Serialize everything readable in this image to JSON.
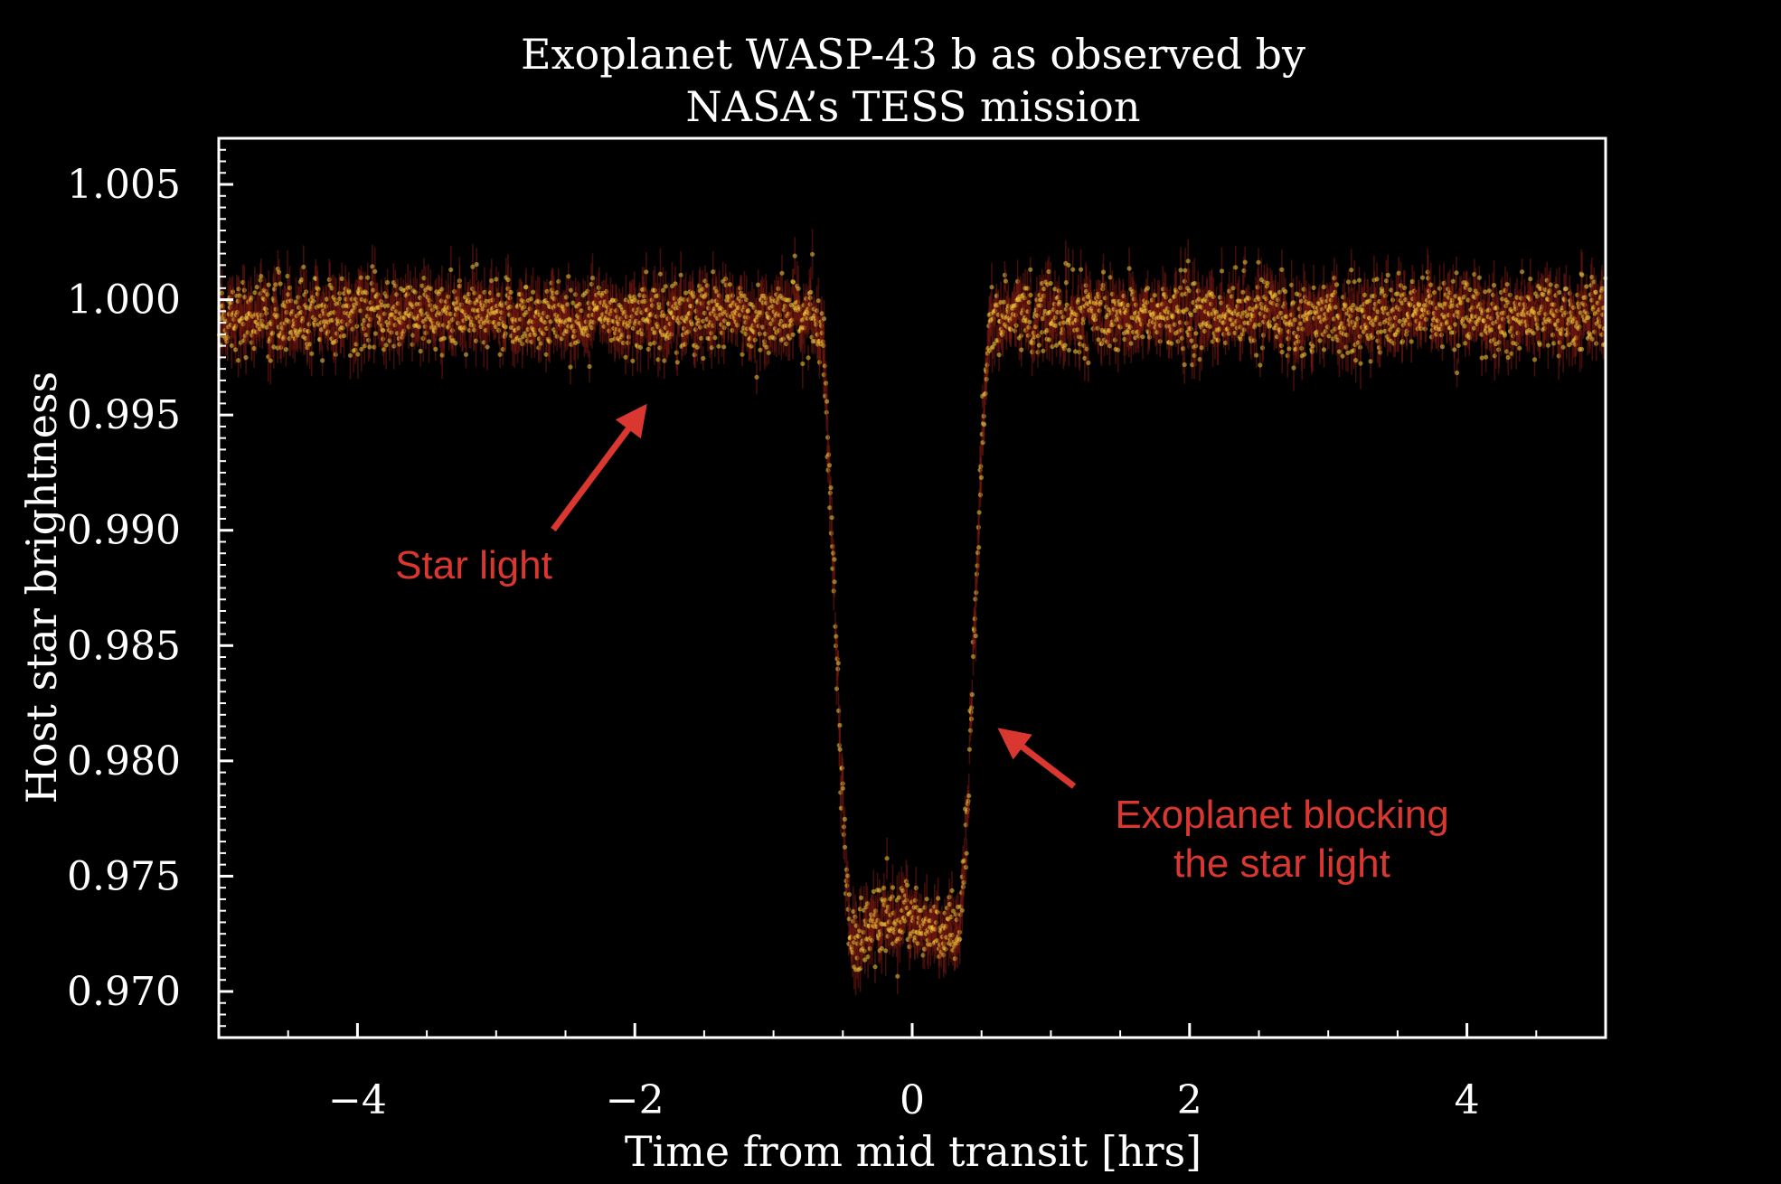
{
  "chart_data": {
    "type": "scatter",
    "title_lines": [
      "Exoplanet WASP-43 b as observed by",
      "NASA’s TESS mission"
    ],
    "xlabel": "Time from mid transit [hrs]",
    "ylabel": "Host star brightness",
    "xlim": [
      -5,
      5
    ],
    "ylim": [
      0.968,
      1.007
    ],
    "x_ticks": [
      -4,
      -2,
      0,
      2,
      4
    ],
    "x_tick_labels": [
      "−4",
      "−2",
      "0",
      "2",
      "4"
    ],
    "y_ticks": [
      0.97,
      0.975,
      0.98,
      0.985,
      0.99,
      0.995,
      1.0,
      1.005
    ],
    "y_tick_labels": [
      "0.970",
      "0.975",
      "0.980",
      "0.985",
      "0.990",
      "0.995",
      "1.000",
      "1.005"
    ],
    "grid": false,
    "series": [
      {
        "marker_color": "#f2cf3a",
        "error_bar_color": "#7a1a10",
        "baseline_flux": 0.9993,
        "minimum_flux": 0.972,
        "transit_start_hrs": -0.68,
        "transit_end_hrs": 0.58,
        "x_range": [
          -5,
          5
        ]
      }
    ],
    "annotations": [
      {
        "text_lines": [
          "Star light"
        ],
        "color": "#d9372f",
        "arrow_target": [
          -1.9,
          0.9955
        ]
      },
      {
        "text_lines": [
          "Exoplanet blocking",
          "the star light"
        ],
        "color": "#d9372f",
        "arrow_target": [
          0.6,
          0.9815
        ]
      }
    ]
  }
}
